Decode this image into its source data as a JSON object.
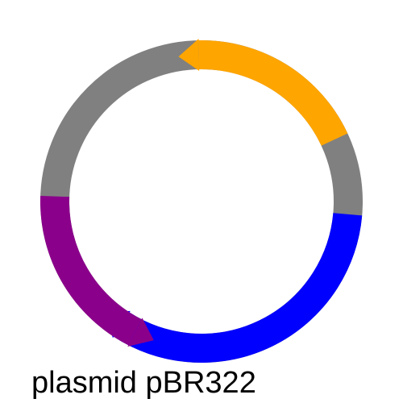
{
  "title": "plasmid pBR322",
  "colors": {
    "backbone": "#808080",
    "orange_feature": "#FFA500",
    "blue_feature": "#0000FF",
    "purple_feature": "#8B008B",
    "background": "#FFFFFF",
    "text": "#000000"
  },
  "features": [
    {
      "name": "feature-orange",
      "color_key": "orange_feature",
      "start_deg": 65,
      "end_deg": -9,
      "direction": "counterclockwise"
    },
    {
      "name": "feature-blue",
      "color_key": "blue_feature",
      "start_deg": 95,
      "end_deg": 221,
      "direction": "clockwise"
    },
    {
      "name": "feature-purple",
      "color_key": "purple_feature",
      "start_deg": -88,
      "end_deg": -161,
      "direction": "counterclockwise"
    }
  ]
}
